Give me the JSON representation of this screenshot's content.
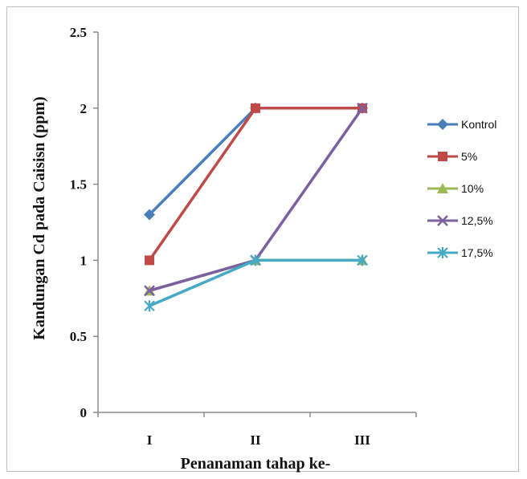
{
  "chart_data": {
    "type": "line",
    "title": "",
    "xlabel": "Penanaman tahap ke-",
    "ylabel": "Kandungan Cd pada Caisisn (ppm)",
    "categories": [
      "I",
      "II",
      "III"
    ],
    "ylim": [
      0,
      2.5
    ],
    "yticks": [
      "0",
      "0.5",
      "1",
      "1.5",
      "2",
      "2.5"
    ],
    "ytick_values": [
      0,
      0.5,
      1,
      1.5,
      2,
      2.5
    ],
    "grid": false,
    "legend_position": "right",
    "series": [
      {
        "name": "Kontrol",
        "values": [
          1.3,
          2,
          2
        ],
        "color": "#4a7ebb",
        "marker": "diamond"
      },
      {
        "name": "5%",
        "values": [
          1,
          2,
          2
        ],
        "color": "#be4b48",
        "marker": "square"
      },
      {
        "name": "10%",
        "values": [
          0.8,
          1,
          1
        ],
        "color": "#98b954",
        "marker": "triangle"
      },
      {
        "name": "12,5%",
        "values": [
          0.8,
          1,
          2
        ],
        "color": "#7d60a0",
        "marker": "x"
      },
      {
        "name": "17,5%",
        "values": [
          0.7,
          1,
          1
        ],
        "color": "#46aac5",
        "marker": "star"
      }
    ]
  }
}
